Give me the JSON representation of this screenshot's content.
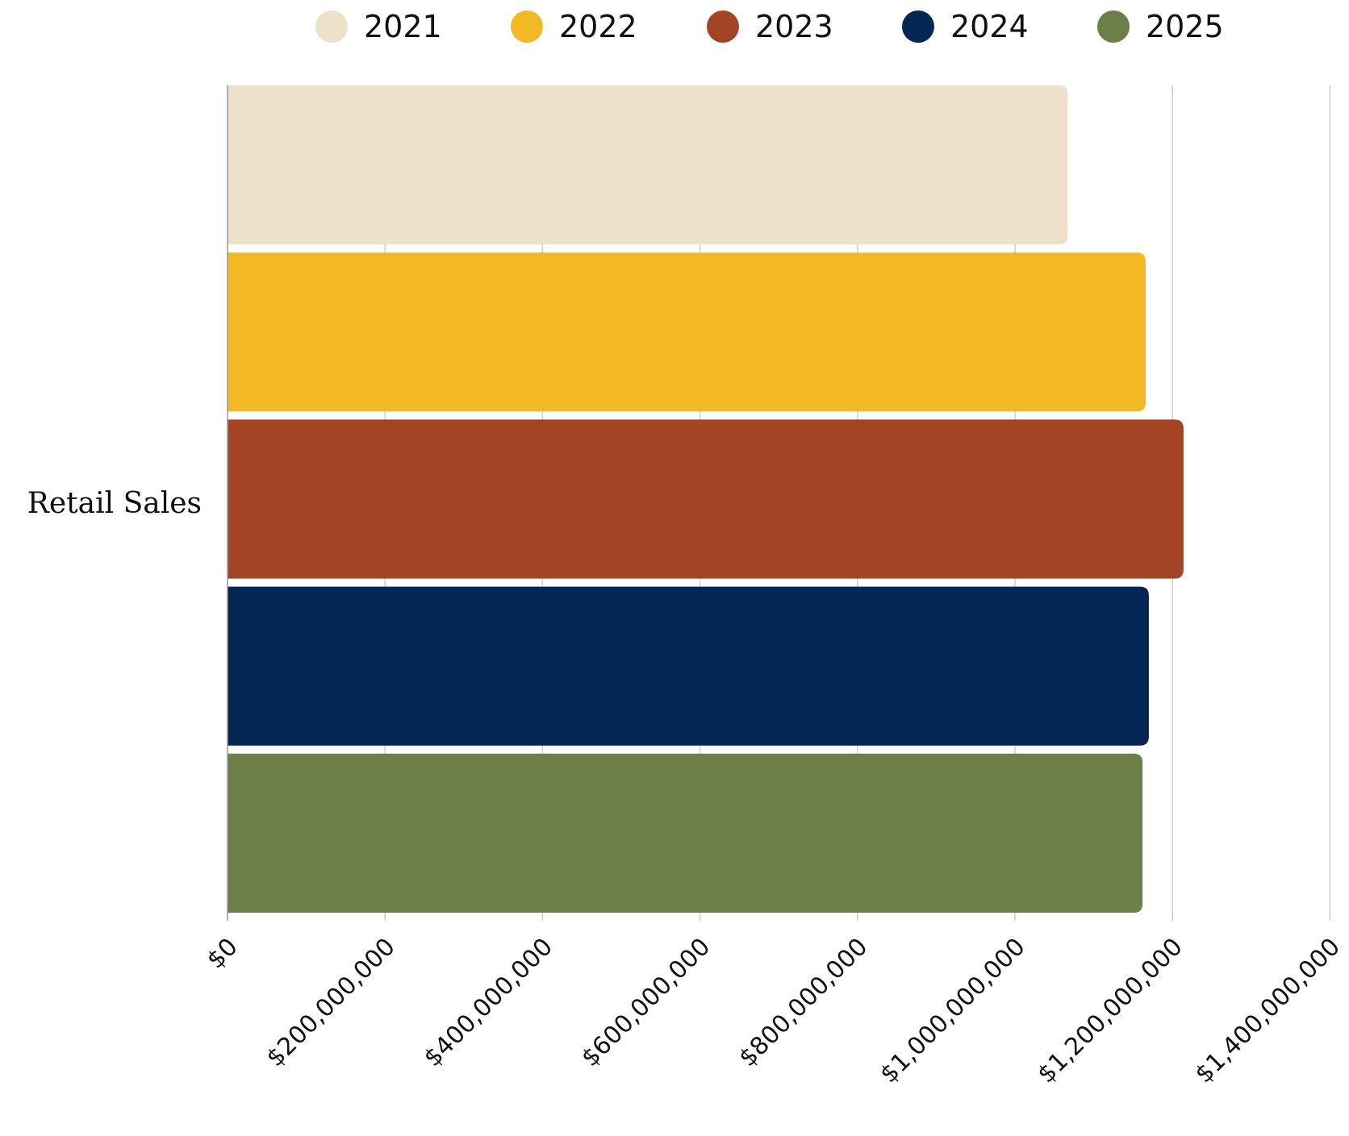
{
  "chart_data": {
    "type": "bar",
    "orientation": "horizontal",
    "categories": [
      "Retail Sales"
    ],
    "series": [
      {
        "name": "2021",
        "color": "#EDE1CA",
        "values": [
          1067000000
        ]
      },
      {
        "name": "2022",
        "color": "#F3B925",
        "values": [
          1166000000
        ]
      },
      {
        "name": "2023",
        "color": "#A34524",
        "values": [
          1214000000
        ]
      },
      {
        "name": "2024",
        "color": "#052754",
        "values": [
          1170000000
        ]
      },
      {
        "name": "2025",
        "color": "#6C7F48",
        "values": [
          1162000000
        ]
      }
    ],
    "title": "",
    "xlabel": "",
    "ylabel": "",
    "xlim": [
      0,
      1400000000
    ],
    "x_ticks": [
      0,
      200000000,
      400000000,
      600000000,
      800000000,
      1000000000,
      1200000000,
      1400000000
    ],
    "x_tick_labels": [
      "$0",
      "$200,000,000",
      "$400,000,000",
      "$600,000,000",
      "$800,000,000",
      "$1,000,000,000",
      "$1,200,000,000",
      "$1,400,000,000"
    ],
    "grid": true,
    "legend_position": "top"
  }
}
